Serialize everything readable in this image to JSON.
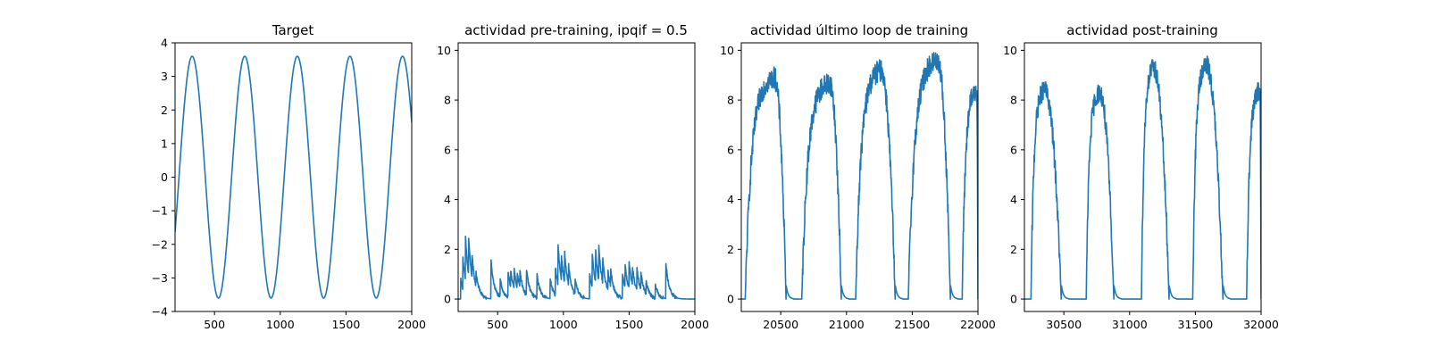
{
  "figure": {
    "background": "#ffffff",
    "line_color": "#1f77b4"
  },
  "chart_data": [
    {
      "type": "line",
      "title": "Target",
      "xlabel": "",
      "ylabel": "",
      "xlim": [
        200,
        2000
      ],
      "ylim": [
        -4,
        4
      ],
      "xticks": [
        500,
        1000,
        1500,
        2000
      ],
      "yticks": [
        -4,
        -3,
        -2,
        -1,
        0,
        1,
        2,
        3,
        4
      ],
      "grid": false,
      "signal": {
        "kind": "sine",
        "amplitude": 3.6,
        "period": 400,
        "peaks_at": [
          330,
          730,
          1130,
          1530,
          1930
        ]
      }
    },
    {
      "type": "line",
      "title": "actividad pre-training, ipqif = 0.5",
      "xlabel": "",
      "ylabel": "",
      "xlim": [
        200,
        2000
      ],
      "ylim": [
        -0.5,
        10.3
      ],
      "xticks": [
        500,
        1000,
        1500,
        2000
      ],
      "yticks": [
        0,
        2,
        4,
        6,
        8,
        10
      ],
      "grid": false,
      "signal": {
        "kind": "spikes",
        "decay": 25,
        "noise": 0.15,
        "events": [
          [
            220,
            0.8
          ],
          [
            235,
            1.3
          ],
          [
            255,
            1.8
          ],
          [
            280,
            1.5
          ],
          [
            305,
            0.9
          ],
          [
            335,
            0.6
          ],
          [
            450,
            1.5
          ],
          [
            520,
            0.7
          ],
          [
            580,
            1.0
          ],
          [
            600,
            0.7
          ],
          [
            625,
            0.8
          ],
          [
            650,
            0.6
          ],
          [
            670,
            0.7
          ],
          [
            720,
            1.0
          ],
          [
            800,
            0.9
          ],
          [
            900,
            0.8
          ],
          [
            940,
            1.1
          ],
          [
            960,
            1.6
          ],
          [
            985,
            1.0
          ],
          [
            1010,
            1.2
          ],
          [
            1040,
            0.8
          ],
          [
            1090,
            0.6
          ],
          [
            1200,
            1.0
          ],
          [
            1220,
            1.4
          ],
          [
            1245,
            1.3
          ],
          [
            1270,
            1.4
          ],
          [
            1300,
            1.0
          ],
          [
            1340,
            0.8
          ],
          [
            1360,
            0.7
          ],
          [
            1450,
            1.0
          ],
          [
            1470,
            0.9
          ],
          [
            1500,
            1.1
          ],
          [
            1525,
            0.8
          ],
          [
            1560,
            0.9
          ],
          [
            1590,
            0.7
          ],
          [
            1630,
            0.5
          ],
          [
            1700,
            0.5
          ],
          [
            1780,
            1.4
          ]
        ]
      }
    },
    {
      "type": "line",
      "title": "actividad último loop de training",
      "xlabel": "",
      "ylabel": "",
      "xlim": [
        20200,
        22000
      ],
      "ylim": [
        -0.5,
        10.3
      ],
      "xticks": [
        20500,
        21000,
        21500,
        22000
      ],
      "yticks": [
        0,
        2,
        4,
        6,
        8,
        10
      ],
      "grid": false,
      "signal": {
        "kind": "bursts",
        "noise": 0.45,
        "bursts": [
          {
            "start": 20230,
            "peak_at": 20450,
            "peak": 8.9,
            "end": 20540
          },
          {
            "start": 20660,
            "peak_at": 20870,
            "peak": 8.7,
            "end": 20960
          },
          {
            "start": 21070,
            "peak_at": 21260,
            "peak": 9.2,
            "end": 21370
          },
          {
            "start": 21470,
            "peak_at": 21690,
            "peak": 9.6,
            "end": 21790
          },
          {
            "start": 21880,
            "peak_at": 21990,
            "peak": 8.4,
            "end": 22000
          }
        ]
      }
    },
    {
      "type": "line",
      "title": "actividad post-training",
      "xlabel": "",
      "ylabel": "",
      "xlim": [
        30200,
        32000
      ],
      "ylim": [
        -0.5,
        10.3
      ],
      "xticks": [
        30500,
        31000,
        31500,
        32000
      ],
      "yticks": [
        0,
        2,
        4,
        6,
        8,
        10
      ],
      "grid": false,
      "signal": {
        "kind": "bursts",
        "noise": 0.4,
        "bursts": [
          {
            "start": 30250,
            "peak_at": 30350,
            "peak": 8.4,
            "end": 30480
          },
          {
            "start": 30670,
            "peak_at": 30770,
            "peak": 8.3,
            "end": 30880
          },
          {
            "start": 31090,
            "peak_at": 31180,
            "peak": 9.3,
            "end": 31300
          },
          {
            "start": 31480,
            "peak_at": 31580,
            "peak": 9.4,
            "end": 31710
          },
          {
            "start": 31890,
            "peak_at": 31990,
            "peak": 8.4,
            "end": 32000
          }
        ]
      }
    }
  ]
}
